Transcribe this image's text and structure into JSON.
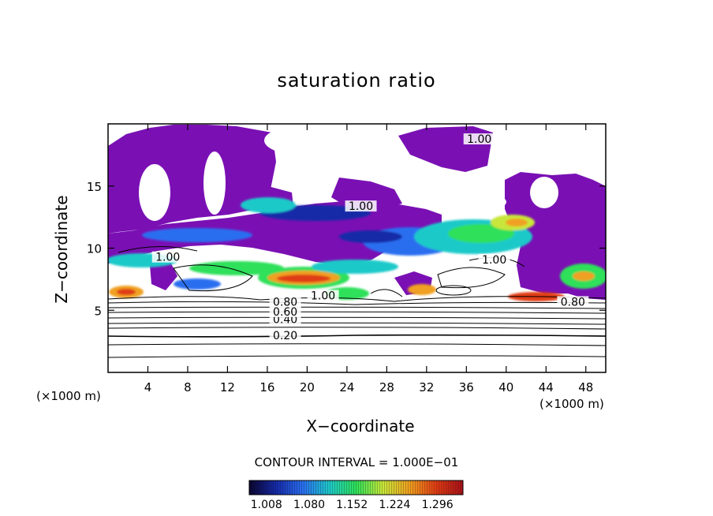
{
  "chart_data": {
    "type": "heatmap",
    "title": "saturation ratio",
    "xlabel": "X−coordinate",
    "ylabel": "Z−coordinate",
    "x_unit_label": "(×1000 m)",
    "xlim": [
      0,
      50
    ],
    "ylim": [
      0,
      20
    ],
    "x_ticks": [
      4,
      8,
      12,
      16,
      20,
      24,
      28,
      32,
      36,
      40,
      44,
      48
    ],
    "y_ticks": [
      5,
      10,
      15
    ],
    "contour_interval_label": "CONTOUR INTERVAL = 1.000E−01",
    "contour_labels": [
      {
        "text": "0.20",
        "x": 17.8,
        "z": 2.8
      },
      {
        "text": "0.40",
        "x": 17.8,
        "z": 4.1
      },
      {
        "text": "0.60",
        "x": 17.8,
        "z": 4.7
      },
      {
        "text": "0.80",
        "x": 17.8,
        "z": 5.5
      },
      {
        "text": "0.80",
        "x": 46.7,
        "z": 5.5
      },
      {
        "text": "1.00",
        "x": 21.6,
        "z": 6.0
      },
      {
        "text": "1.00",
        "x": 6.0,
        "z": 9.1
      },
      {
        "text": "1.00",
        "x": 38.8,
        "z": 8.9
      },
      {
        "text": "1.00",
        "x": 25.4,
        "z": 13.2
      },
      {
        "text": "1.00",
        "x": 37.3,
        "z": 18.6
      }
    ],
    "colorbar": {
      "ticks": [
        "1.008",
        "1.080",
        "1.152",
        "1.224",
        "1.296"
      ],
      "colors": [
        "#0b0530",
        "#162aa8",
        "#2a6ef0",
        "#1fc9c9",
        "#2ee05a",
        "#c8e63a",
        "#f0a020",
        "#e03c14",
        "#a8121a"
      ]
    },
    "colors": {
      "purple_region": "#7a10b4",
      "frame": "#000000"
    }
  }
}
